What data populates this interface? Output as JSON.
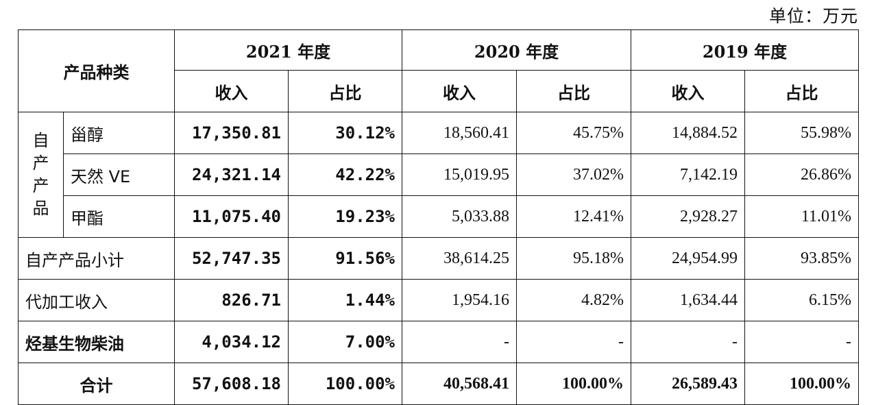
{
  "unit_label": "单位：万元",
  "header": {
    "category": "产品种类",
    "years": [
      "2021 年度",
      "2020 年度",
      "2019 年度"
    ],
    "revenue": "收入",
    "share": "占比"
  },
  "group_label": [
    "自",
    "产",
    "产",
    "品"
  ],
  "rows": [
    {
      "label": "甾醇",
      "v2021": "17,350.81",
      "p2021": "30.12%",
      "v2020": "18,560.41",
      "p2020": "45.75%",
      "v2019": "14,884.52",
      "p2019": "55.98%"
    },
    {
      "label": "天然 VE",
      "v2021": "24,321.14",
      "p2021": "42.22%",
      "v2020": "15,019.95",
      "p2020": "37.02%",
      "v2019": "7,142.19",
      "p2019": "26.86%"
    },
    {
      "label": "甲酯",
      "v2021": "11,075.40",
      "p2021": "19.23%",
      "v2020": "5,033.88",
      "p2020": "12.41%",
      "v2019": "2,928.27",
      "p2019": "11.01%"
    },
    {
      "label": "自产产品小计",
      "v2021": "52,747.35",
      "p2021": "91.56%",
      "v2020": "38,614.25",
      "p2020": "95.18%",
      "v2019": "24,954.99",
      "p2019": "93.85%"
    },
    {
      "label": "代加工收入",
      "v2021": "826.71",
      "p2021": "1.44%",
      "v2020": "1,954.16",
      "p2020": "4.82%",
      "v2019": "1,634.44",
      "p2019": "6.15%"
    },
    {
      "label": "烃基生物柴油",
      "v2021": "4,034.12",
      "p2021": "7.00%",
      "v2020": "-",
      "p2020": "-",
      "v2019": "-",
      "p2019": "-"
    },
    {
      "label": "合计",
      "v2021": "57,608.18",
      "p2021": "100.00%",
      "v2020": "40,568.41",
      "p2020": "100.00%",
      "v2019": "26,589.43",
      "p2019": "100.00%"
    }
  ]
}
